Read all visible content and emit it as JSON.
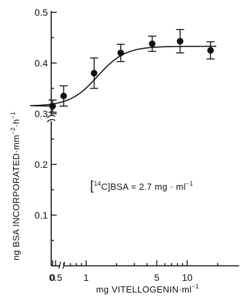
{
  "chart_data": {
    "type": "scatter",
    "title": "",
    "xlabel": "mg VITELLOGENIN·ml",
    "xlabel_sup": "−1",
    "ylabel": "ng BSA INCORPORATED·mm",
    "ylabel_sup1": "−2",
    "ylabel_mid": "·h",
    "ylabel_sup2": "−1",
    "x_scale": "log",
    "x_axis_break": true,
    "y_axis_break": true,
    "ylim": [
      0,
      0.5
    ],
    "xlim": [
      0.2,
      20
    ],
    "y_ticks": [
      {
        "value": 0.1,
        "label": "0.1"
      },
      {
        "value": 0.2,
        "label": "0.2"
      },
      {
        "value": 0.3,
        "label": "0.3"
      },
      {
        "value": 0.4,
        "label": "0.4"
      },
      {
        "value": 0.5,
        "label": "0.5"
      }
    ],
    "x_ticks": [
      {
        "value": 0,
        "label": "0"
      },
      {
        "value": 0.5,
        "label": "0.5"
      },
      {
        "value": 1,
        "label": "1"
      },
      {
        "value": 5,
        "label": "5"
      },
      {
        "value": 10,
        "label": "10"
      }
    ],
    "series": [
      {
        "points": [
          {
            "x": 0,
            "y": 0.315,
            "err": 0.012
          },
          {
            "x": 0.6,
            "y": 0.335,
            "err": 0.02
          },
          {
            "x": 1.2,
            "y": 0.38,
            "err": 0.03
          },
          {
            "x": 2.2,
            "y": 0.42,
            "err": 0.017
          },
          {
            "x": 4.5,
            "y": 0.438,
            "err": 0.015
          },
          {
            "x": 8.5,
            "y": 0.443,
            "err": 0.023
          },
          {
            "x": 17,
            "y": 0.425,
            "err": 0.017
          }
        ]
      }
    ],
    "annotation": {
      "prefix": "[",
      "isotope": "14",
      "rest": "C]BSA = 2.7 mg · ml",
      "sup": "−1"
    }
  }
}
